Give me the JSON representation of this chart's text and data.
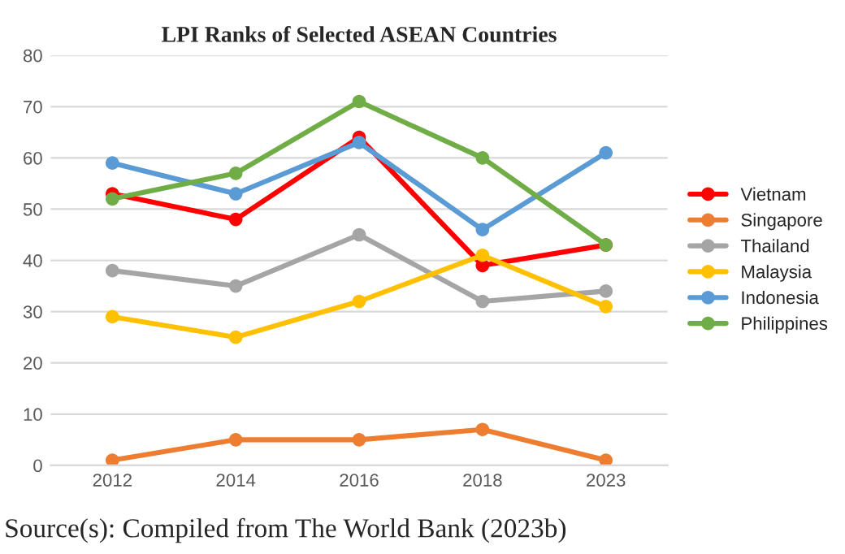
{
  "chart_data": {
    "type": "line",
    "title": "LPI Ranks of Selected ASEAN Countries",
    "categories": [
      "2012",
      "2014",
      "2016",
      "2018",
      "2023"
    ],
    "series": [
      {
        "name": "Vietnam",
        "color": "#ff0000",
        "values": [
          53,
          48,
          64,
          39,
          43
        ]
      },
      {
        "name": "Singapore",
        "color": "#ed7d31",
        "values": [
          1,
          5,
          5,
          7,
          1
        ]
      },
      {
        "name": "Thailand",
        "color": "#a5a5a5",
        "values": [
          38,
          35,
          45,
          32,
          34
        ]
      },
      {
        "name": "Malaysia",
        "color": "#ffc000",
        "values": [
          29,
          25,
          32,
          41,
          31
        ]
      },
      {
        "name": "Indonesia",
        "color": "#5b9bd5",
        "values": [
          59,
          53,
          63,
          46,
          61
        ]
      },
      {
        "name": "Philippines",
        "color": "#70ad47",
        "values": [
          52,
          57,
          71,
          60,
          43
        ]
      }
    ],
    "ylim": [
      0,
      80
    ],
    "yticks": [
      0,
      10,
      20,
      30,
      40,
      50,
      60,
      70,
      80
    ],
    "grid": "y",
    "legend": "right",
    "marker": "circle",
    "line_style": "solid",
    "annotations": [
      "Source(s): Compiled from The World Bank (2023b)"
    ]
  }
}
